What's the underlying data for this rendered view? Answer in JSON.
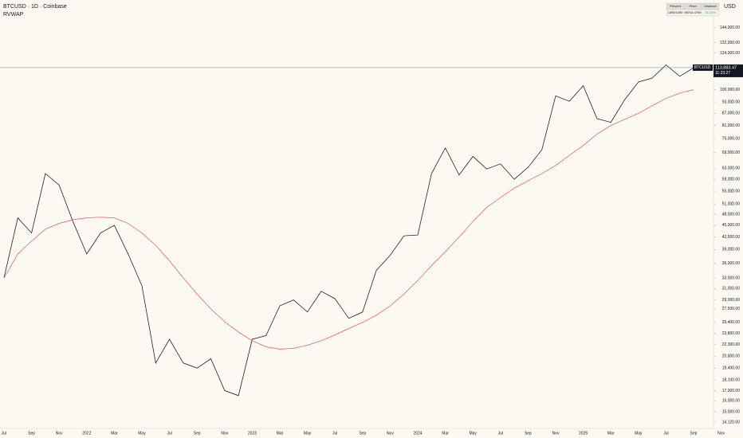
{
  "chart_data": {
    "type": "line",
    "title": "BTCUSD · 1D · Coinbase",
    "currency": "USD",
    "categories": [
      "Jul",
      null,
      "Sep",
      null,
      "Nov",
      null,
      "2022",
      null,
      "Mar",
      null,
      "May",
      null,
      "Jul",
      null,
      "Sep",
      null,
      "Nov",
      null,
      "2023",
      null,
      "Mar",
      null,
      "May",
      null,
      "Jul",
      null,
      "Sep",
      null,
      "Nov",
      null,
      "2024",
      null,
      "Mar",
      null,
      "May",
      null,
      "Jul",
      null,
      "Sep",
      null,
      "Nov",
      null,
      "2025",
      null,
      "Mar",
      null,
      "May",
      null,
      "Jul",
      null,
      "Sep",
      null,
      "Nov"
    ],
    "series": [
      {
        "name": "BTCUSD",
        "color": "#1e222d",
        "values": [
          33000,
          47000,
          43000,
          61000,
          57000,
          46000,
          38000,
          43000,
          45000,
          38000,
          31500,
          20000,
          23000,
          20000,
          19400,
          20500,
          17000,
          16500,
          23000,
          23500,
          28000,
          29000,
          27000,
          30500,
          29200,
          26000,
          27000,
          34500,
          37700,
          42300,
          42500,
          61000,
          71000,
          60500,
          67500,
          62700,
          64600,
          59000,
          63300,
          70200,
          96400,
          93400,
          102400,
          84300,
          82500,
          94200,
          104600,
          107100,
          115700,
          108200,
          113800,
          null,
          null
        ]
      },
      {
        "name": "RVWAP",
        "color": "#ef5350",
        "values": [
          33000,
          38000,
          41000,
          44000,
          45500,
          46500,
          47000,
          47200,
          47000,
          45500,
          43000,
          40000,
          36500,
          33000,
          30000,
          27500,
          25500,
          24000,
          22800,
          22000,
          21700,
          21800,
          22200,
          22800,
          23600,
          24500,
          25400,
          26500,
          28000,
          30000,
          32500,
          35500,
          38500,
          42000,
          46000,
          50000,
          53000,
          56000,
          58500,
          61000,
          64000,
          68000,
          72000,
          77000,
          81000,
          84000,
          87000,
          91000,
          95000,
          98000,
          100000,
          null,
          null
        ]
      }
    ],
    "last_price": 113883.47,
    "last_price_label": "113,883.47",
    "countdown": "11:23:27",
    "table": {
      "headers": [
        "Percent",
        "Price",
        "Distance"
      ],
      "row": [
        "1095/1095",
        "98744.4769",
        "15.33%"
      ]
    },
    "log_scale": true,
    "ylim": [
      13600,
      169600
    ],
    "yticks": [
      {
        "value": 144000,
        "label": "144,000.00"
      },
      {
        "value": 132000,
        "label": "132,000.00"
      },
      {
        "value": 124000,
        "label": "124,000.00"
      },
      {
        "value": 100000,
        "label": "100,000.00"
      },
      {
        "value": 93000,
        "label": "93,000.00"
      },
      {
        "value": 87000,
        "label": "87,000.00"
      },
      {
        "value": 81000,
        "label": "81,000.00"
      },
      {
        "value": 75000,
        "label": "75,000.00"
      },
      {
        "value": 69000,
        "label": "69,000.00"
      },
      {
        "value": 63000,
        "label": "63,000.00"
      },
      {
        "value": 59000,
        "label": "59,000.00"
      },
      {
        "value": 55000,
        "label": "55,000.00"
      },
      {
        "value": 51000,
        "label": "51,000.00"
      },
      {
        "value": 48000,
        "label": "48,000.00"
      },
      {
        "value": 45000,
        "label": "45,000.00"
      },
      {
        "value": 42000,
        "label": "42,000.00"
      },
      {
        "value": 39000,
        "label": "39,000.00"
      },
      {
        "value": 36000,
        "label": "36,000.00"
      },
      {
        "value": 33000,
        "label": "33,000.00"
      },
      {
        "value": 31000,
        "label": "31,000.00"
      },
      {
        "value": 29000,
        "label": "29,000.00"
      },
      {
        "value": 27500,
        "label": "27,500.00"
      },
      {
        "value": 25400,
        "label": "25,400.00"
      },
      {
        "value": 23800,
        "label": "23,800.00"
      },
      {
        "value": 22300,
        "label": "22,300.00"
      },
      {
        "value": 20800,
        "label": "20,800.00"
      },
      {
        "value": 19400,
        "label": "19,400.00"
      },
      {
        "value": 18100,
        "label": "18,100.00"
      },
      {
        "value": 17000,
        "label": "17,000.00"
      },
      {
        "value": 16000,
        "label": "16,000.00"
      },
      {
        "value": 15000,
        "label": "15,000.00"
      },
      {
        "value": 14120,
        "label": "14,120.00"
      }
    ],
    "grid": false
  }
}
